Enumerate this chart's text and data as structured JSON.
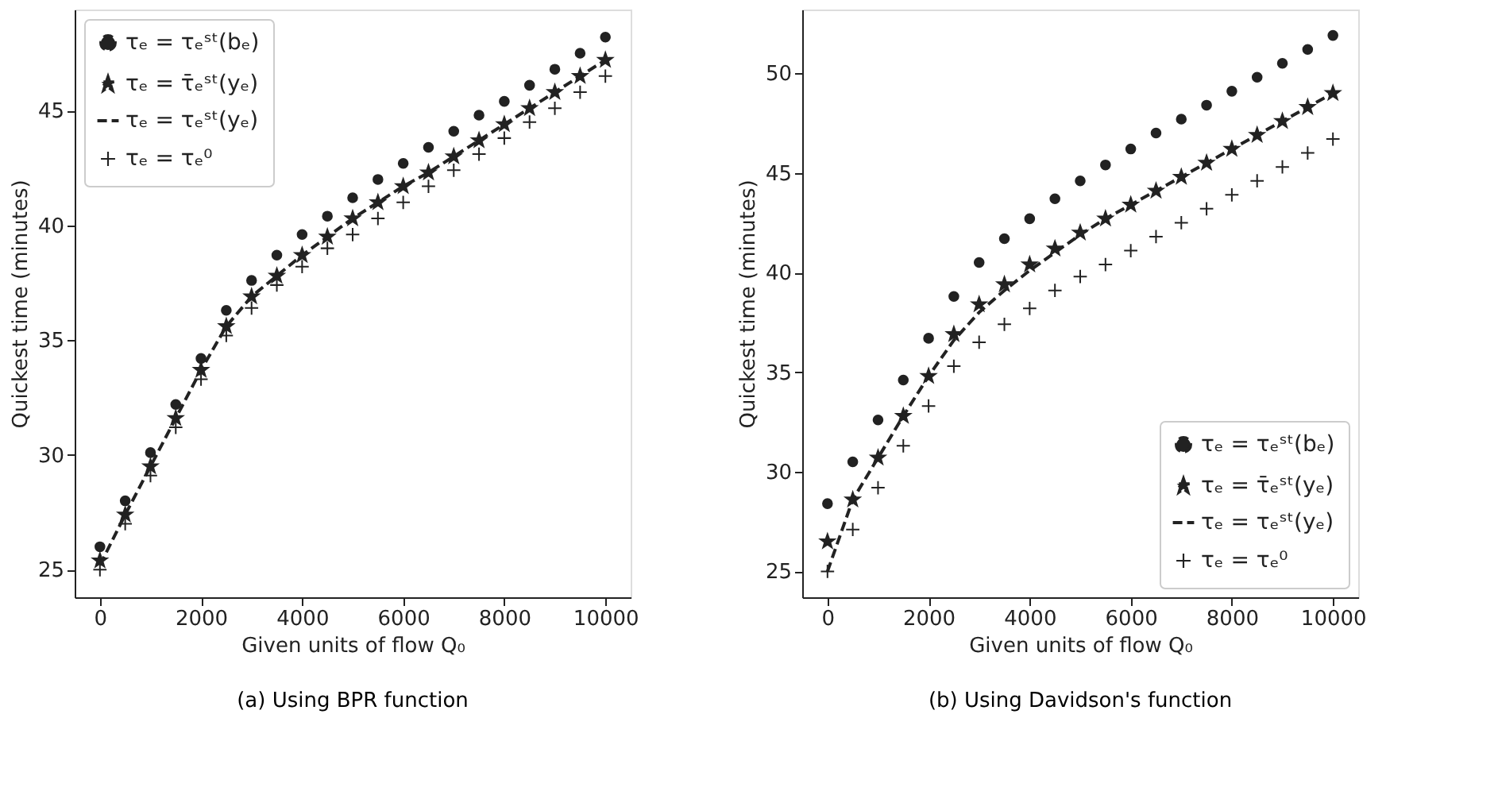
{
  "chart_data": [
    {
      "type": "scatter",
      "title": "(a) Using BPR function",
      "xlabel": "Given units of flow Q₀",
      "ylabel": "Quickest time (minutes)",
      "x": [
        0,
        500,
        1000,
        1500,
        2000,
        2500,
        3000,
        3500,
        4000,
        4500,
        5000,
        5500,
        6000,
        6500,
        7000,
        7500,
        8000,
        8500,
        9000,
        9500,
        10000
      ],
      "series": [
        {
          "name": "τₑ = τₑˢᵗ(bₑ)",
          "color": "#222222",
          "marker": "circle",
          "values": [
            26.0,
            28.0,
            30.1,
            32.2,
            34.2,
            36.3,
            37.6,
            38.7,
            39.6,
            40.4,
            41.2,
            42.0,
            42.7,
            43.4,
            44.1,
            44.8,
            45.4,
            46.1,
            46.8,
            47.5,
            48.2
          ]
        },
        {
          "name": "τₑ = τ̄ₑˢᵗ(yₑ)",
          "color": "#222222",
          "marker": "star",
          "values": [
            25.4,
            27.4,
            29.5,
            31.6,
            33.7,
            35.6,
            36.9,
            37.8,
            38.7,
            39.5,
            40.3,
            41.0,
            41.7,
            42.3,
            43.0,
            43.7,
            44.4,
            45.1,
            45.8,
            46.5,
            47.2
          ]
        },
        {
          "name": "τₑ = τₑˢᵗ(yₑ)",
          "type": "line",
          "color": "#222222",
          "marker": "none",
          "line_style": "dashed",
          "values": [
            25.2,
            27.4,
            29.5,
            31.6,
            33.7,
            35.6,
            36.9,
            37.8,
            38.7,
            39.5,
            40.3,
            41.0,
            41.7,
            42.3,
            43.0,
            43.7,
            44.4,
            45.1,
            45.8,
            46.5,
            47.2
          ]
        },
        {
          "name": "τₑ = τₑ⁰",
          "color": "#222222",
          "marker": "cross",
          "values": [
            25.0,
            27.0,
            29.1,
            31.2,
            33.3,
            35.2,
            36.4,
            37.4,
            38.2,
            39.0,
            39.6,
            40.3,
            41.0,
            41.7,
            42.4,
            43.1,
            43.8,
            44.5,
            45.1,
            45.8,
            46.5
          ]
        }
      ],
      "xlim": [
        -500,
        10500
      ],
      "xticks": [
        0,
        2000,
        4000,
        6000,
        8000,
        10000
      ],
      "ylim": [
        23.8,
        49.4
      ],
      "yticks": [
        25,
        30,
        35,
        40,
        45
      ],
      "legend": "top left",
      "grid": false
    },
    {
      "type": "scatter",
      "title": "(b) Using Davidson's function",
      "xlabel": "Given units of flow Q₀",
      "ylabel": "Quickest time (minutes)",
      "x": [
        0,
        500,
        1000,
        1500,
        2000,
        2500,
        3000,
        3500,
        4000,
        4500,
        5000,
        5500,
        6000,
        6500,
        7000,
        7500,
        8000,
        8500,
        9000,
        9500,
        10000
      ],
      "series": [
        {
          "name": "τₑ = τₑˢᵗ(bₑ)",
          "color": "#222222",
          "marker": "circle",
          "values": [
            28.4,
            30.5,
            32.6,
            34.6,
            36.7,
            38.8,
            40.5,
            41.7,
            42.7,
            43.7,
            44.6,
            45.4,
            46.2,
            47.0,
            47.7,
            48.4,
            49.1,
            49.8,
            50.5,
            51.2,
            51.9
          ]
        },
        {
          "name": "τₑ = τ̄ₑˢᵗ(yₑ)",
          "color": "#222222",
          "marker": "star",
          "values": [
            26.5,
            28.6,
            30.7,
            32.8,
            34.8,
            36.9,
            38.4,
            39.4,
            40.4,
            41.2,
            42.0,
            42.7,
            43.4,
            44.1,
            44.8,
            45.5,
            46.2,
            46.9,
            47.6,
            48.3,
            49.0
          ]
        },
        {
          "name": "τₑ = τₑˢᵗ(yₑ)",
          "type": "line",
          "color": "#222222",
          "marker": "none",
          "line_style": "dashed",
          "values": [
            25.0,
            28.6,
            30.7,
            32.8,
            34.8,
            36.6,
            38.0,
            39.1,
            40.1,
            41.0,
            41.9,
            42.7,
            43.4,
            44.1,
            44.8,
            45.5,
            46.2,
            46.9,
            47.6,
            48.3,
            49.0
          ]
        },
        {
          "name": "τₑ = τₑ⁰",
          "color": "#222222",
          "marker": "cross",
          "values": [
            25.0,
            27.1,
            29.2,
            31.3,
            33.3,
            35.3,
            36.5,
            37.4,
            38.2,
            39.1,
            39.8,
            40.4,
            41.1,
            41.8,
            42.5,
            43.2,
            43.9,
            44.6,
            45.3,
            46.0,
            46.7
          ]
        }
      ],
      "xlim": [
        -500,
        10500
      ],
      "xticks": [
        0,
        2000,
        4000,
        6000,
        8000,
        10000
      ],
      "ylim": [
        23.7,
        53.2
      ],
      "yticks": [
        25,
        30,
        35,
        40,
        45,
        50
      ],
      "legend": "bottom right",
      "grid": false
    }
  ]
}
